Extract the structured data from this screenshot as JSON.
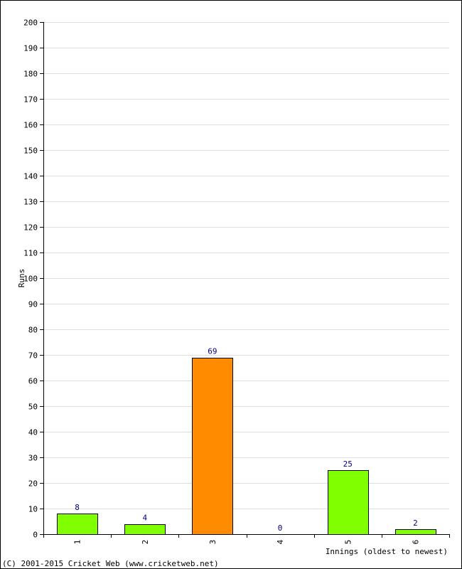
{
  "chart_data": {
    "type": "bar",
    "categories": [
      "1",
      "2",
      "3",
      "4",
      "5",
      "6"
    ],
    "values": [
      8,
      4,
      69,
      0,
      25,
      2
    ],
    "bar_colors": [
      "#80ff00",
      "#80ff00",
      "#ff8c00",
      "#80ff00",
      "#80ff00",
      "#80ff00"
    ],
    "title": "",
    "xlabel": "Innings (oldest to newest)",
    "ylabel": "Runs",
    "ylim": [
      0,
      200
    ],
    "yticks": [
      0,
      10,
      20,
      30,
      40,
      50,
      60,
      70,
      80,
      90,
      100,
      110,
      120,
      130,
      140,
      150,
      160,
      170,
      180,
      190,
      200
    ],
    "grid": true,
    "value_label_color": "#000080"
  },
  "footer": "(C) 2001-2015 Cricket Web (www.cricketweb.net)"
}
